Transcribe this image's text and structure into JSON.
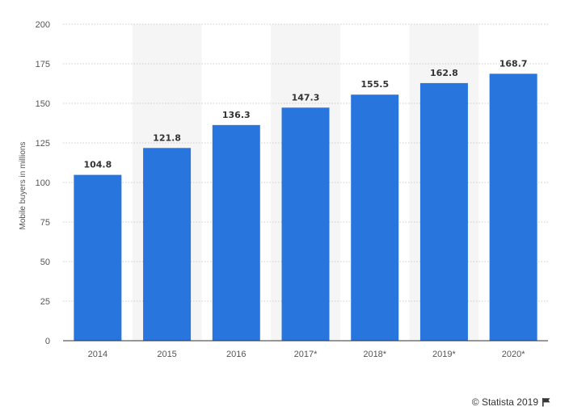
{
  "chart_data": {
    "type": "bar",
    "title": "",
    "xlabel": "",
    "ylabel": "Mobile buyers in millions",
    "categories": [
      "2014",
      "2015",
      "2016",
      "2017*",
      "2018*",
      "2019*",
      "2020*"
    ],
    "values": [
      104.8,
      121.8,
      136.3,
      147.3,
      155.5,
      162.8,
      168.7
    ],
    "value_labels": [
      "104.8",
      "121.8",
      "136.3",
      "147.3",
      "155.5",
      "162.8",
      "168.7"
    ],
    "ylim": [
      0,
      200
    ],
    "yticks": [
      0,
      25,
      50,
      75,
      100,
      125,
      150,
      175,
      200
    ],
    "grid": true,
    "legend": "none",
    "colors": {
      "bar": "#2876dd",
      "alt_band": "#f5f5f5",
      "grid": "#cccccc",
      "axis": "#333333"
    }
  },
  "footer": {
    "credit": "© Statista 2019",
    "flag_icon": "flag-icon"
  }
}
